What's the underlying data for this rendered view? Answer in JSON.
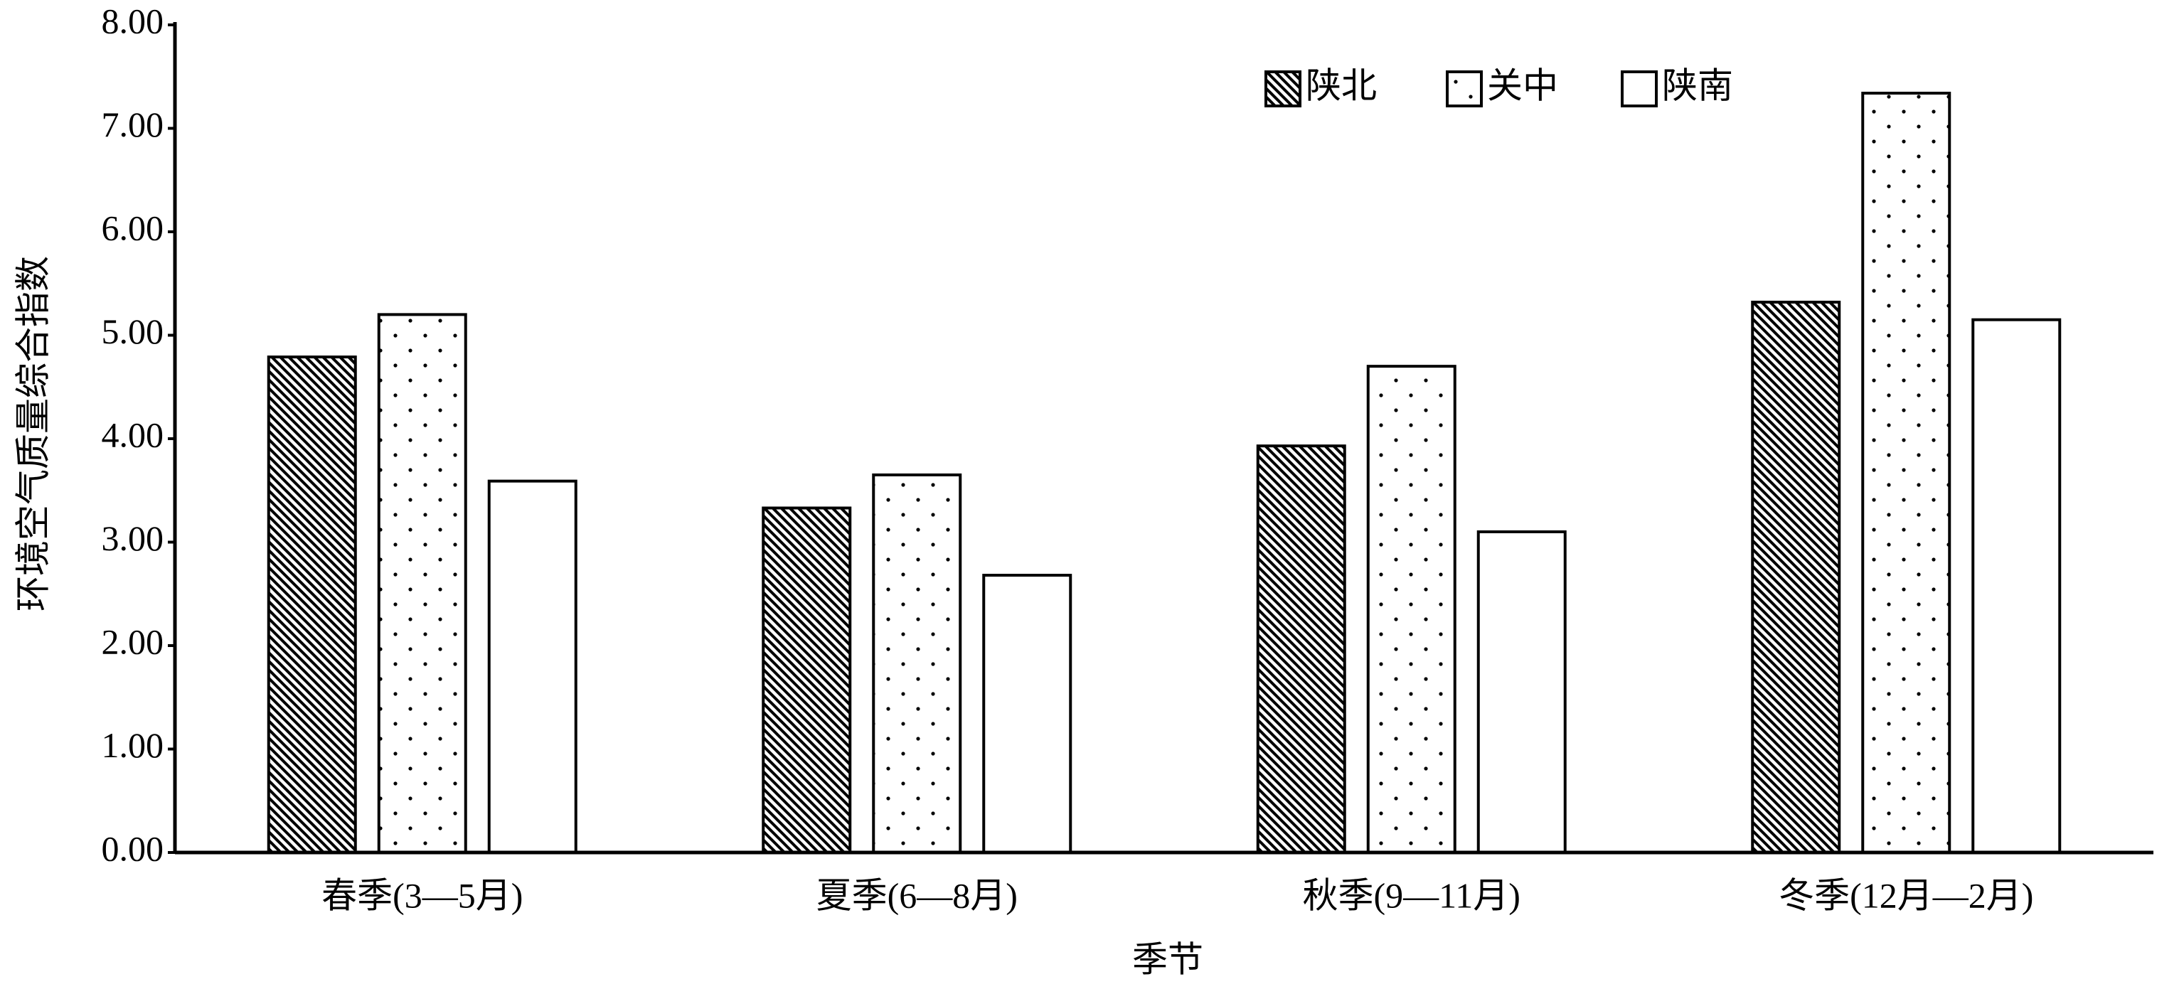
{
  "chart_data": {
    "type": "bar",
    "x_label": "季节",
    "y_label": "环境空气质量综合指数",
    "categories": [
      "春季(3—5月)",
      "夏季(6—8月)",
      "秋季(9—11月)",
      "冬季(12月—2月)"
    ],
    "series": [
      {
        "name": "陕北",
        "color": "#000000",
        "pattern": "hatch",
        "values": [
          4.79,
          3.33,
          3.93,
          5.32
        ]
      },
      {
        "name": "关中",
        "color": "#000000",
        "pattern": "dots",
        "values": [
          5.2,
          3.65,
          4.7,
          7.34
        ]
      },
      {
        "name": "陕南",
        "color": "#000000",
        "pattern": "none",
        "values": [
          3.59,
          2.68,
          3.1,
          5.15
        ]
      }
    ],
    "ylim": [
      0,
      8
    ],
    "yticks": [
      {
        "value": 0,
        "label": "0.00"
      },
      {
        "value": 1,
        "label": "1.00"
      },
      {
        "value": 2,
        "label": "2.00"
      },
      {
        "value": 3,
        "label": "3.00"
      },
      {
        "value": 4,
        "label": "4.00"
      },
      {
        "value": 5,
        "label": "5.00"
      },
      {
        "value": 6,
        "label": "6.00"
      },
      {
        "value": 7,
        "label": "7.00"
      },
      {
        "value": 8,
        "label": "8.00"
      }
    ],
    "grid": false,
    "legend": "top-right"
  }
}
